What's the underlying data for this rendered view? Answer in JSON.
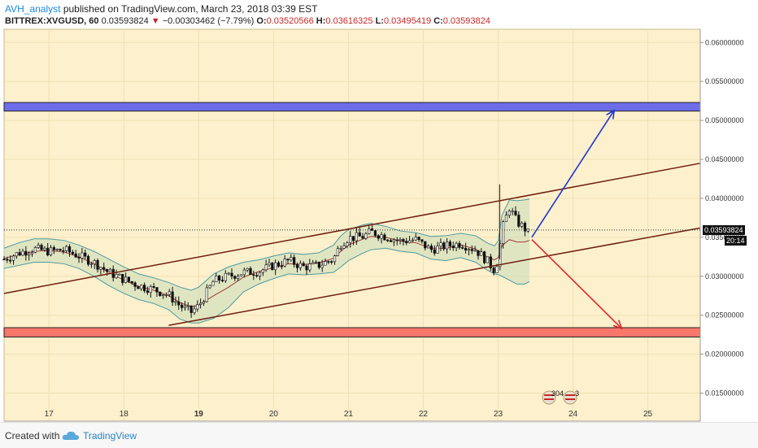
{
  "header": {
    "author": "AVH_analyst",
    "published": "published on TradingView.com, March 23, 2018 03:39 EST"
  },
  "ohlc": {
    "symbol": "BITTREX:XVGUSD, 60",
    "last": "0.03593824",
    "change_arrow": "▼",
    "change": "−0.00303462 (−7.79%)",
    "open_key": "O:",
    "open": "0.03520566",
    "high_key": "H:",
    "high": "0.03616325",
    "low_key": "L:",
    "low": "0.03495419",
    "close_key": "C:",
    "close": "0.03593824"
  },
  "price_tags": {
    "current": "0.03593824",
    "countdown": "20:14"
  },
  "events": {
    "count_a": "304",
    "count_b": "3"
  },
  "footer": {
    "created_with": "Created with",
    "brand": "TradingView"
  },
  "colors": {
    "background": "#fdf0cc",
    "resistance_zone": "#6d6dea",
    "support_zone": "#f7776a",
    "channel": "#6d1f0f",
    "up_arrow": "#1d35d8",
    "down_arrow": "#e2272a",
    "bb_band": "#4d9aa0",
    "bb_fill": "#c9dcb8",
    "bb_mid": "#9a3d3a"
  },
  "chart_data": {
    "type": "candlestick",
    "title": "BITTREX:XVGUSD, 60",
    "x_tick_labels": [
      "17",
      "18",
      "19",
      "20",
      "21",
      "22",
      "23",
      "24",
      "25"
    ],
    "x_ticks": [
      17,
      18,
      19,
      20,
      21,
      22,
      23,
      24,
      25
    ],
    "x_range": [
      16.4,
      25.7
    ],
    "y_tick_labels": [
      "0.06000000",
      "0.05500000",
      "0.05000000",
      "0.04500000",
      "0.04000000",
      "0.03500000",
      "0.03000000",
      "0.02500000",
      "0.02000000",
      "0.01500000"
    ],
    "y_ticks": [
      0.06,
      0.055,
      0.05,
      0.045,
      0.04,
      0.035,
      0.03,
      0.025,
      0.02,
      0.015
    ],
    "y_range": [
      0.0114,
      0.0617
    ],
    "current_price": 0.03593824,
    "zones": [
      {
        "name": "resistance",
        "from": 0.0512,
        "to": 0.0523
      },
      {
        "name": "support",
        "from": 0.0222,
        "to": 0.0234
      }
    ],
    "channel_lines": [
      {
        "x1": 16.4,
        "y1": 0.0278,
        "x2": 25.7,
        "y2": 0.0445
      },
      {
        "x1": 18.6,
        "y1": 0.0237,
        "x2": 25.7,
        "y2": 0.0362
      }
    ],
    "arrows": [
      {
        "name": "bullish-projection",
        "x1": 23.45,
        "y1": 0.035,
        "x2": 24.55,
        "y2": 0.0513
      },
      {
        "name": "bearish-projection",
        "x1": 23.45,
        "y1": 0.0347,
        "x2": 24.65,
        "y2": 0.0233
      }
    ],
    "price_path": {
      "x": [
        16.4,
        16.6,
        16.8,
        17.0,
        17.2,
        17.4,
        17.6,
        17.8,
        18.0,
        18.2,
        18.4,
        18.6,
        18.75,
        18.9,
        19.0,
        19.2,
        19.4,
        19.6,
        19.8,
        20.0,
        20.2,
        20.4,
        20.6,
        20.8,
        20.9,
        21.0,
        21.2,
        21.3,
        21.5,
        21.7,
        21.9,
        22.1,
        22.3,
        22.5,
        22.7,
        22.85,
        22.95,
        23.0,
        23.05,
        23.15,
        23.25,
        23.35,
        23.42
      ],
      "y": [
        0.0322,
        0.033,
        0.0335,
        0.0332,
        0.0334,
        0.0326,
        0.0318,
        0.0305,
        0.0296,
        0.0288,
        0.0283,
        0.0276,
        0.0262,
        0.0254,
        0.0262,
        0.0294,
        0.03,
        0.0305,
        0.0306,
        0.0314,
        0.032,
        0.0312,
        0.0314,
        0.0322,
        0.0342,
        0.0349,
        0.0351,
        0.0357,
        0.0351,
        0.0345,
        0.0347,
        0.0334,
        0.0339,
        0.0342,
        0.0334,
        0.032,
        0.0308,
        0.0322,
        0.036,
        0.0388,
        0.037,
        0.0362,
        0.0353
      ]
    },
    "bollinger": {
      "upper": [
        0.0336,
        0.0343,
        0.0348,
        0.0348,
        0.0346,
        0.034,
        0.0332,
        0.0322,
        0.0312,
        0.0303,
        0.0298,
        0.0292,
        0.0286,
        0.0282,
        0.0286,
        0.0303,
        0.0312,
        0.0318,
        0.0321,
        0.0326,
        0.033,
        0.0328,
        0.033,
        0.034,
        0.0352,
        0.036,
        0.0366,
        0.0368,
        0.0364,
        0.0358,
        0.0356,
        0.0351,
        0.0352,
        0.0355,
        0.0352,
        0.0343,
        0.0339,
        0.0345,
        0.0378,
        0.0398,
        0.0397,
        0.0398,
        0.0399
      ],
      "lower": [
        0.031,
        0.0314,
        0.0318,
        0.0318,
        0.0316,
        0.031,
        0.03,
        0.0288,
        0.0278,
        0.027,
        0.0265,
        0.0257,
        0.0245,
        0.024,
        0.024,
        0.0246,
        0.026,
        0.028,
        0.029,
        0.0297,
        0.0303,
        0.0302,
        0.0303,
        0.0305,
        0.0312,
        0.032,
        0.033,
        0.0334,
        0.0336,
        0.0332,
        0.033,
        0.0322,
        0.032,
        0.0324,
        0.0318,
        0.0308,
        0.0303,
        0.0302,
        0.03,
        0.0295,
        0.029,
        0.029,
        0.0293
      ],
      "middle": [
        0.0323,
        0.0328,
        0.0332,
        0.0333,
        0.0331,
        0.0325,
        0.0316,
        0.0305,
        0.0295,
        0.0287,
        0.0282,
        0.0275,
        0.0266,
        0.0261,
        0.0263,
        0.0275,
        0.0286,
        0.0299,
        0.0306,
        0.0311,
        0.0316,
        0.0315,
        0.0317,
        0.0323,
        0.0332,
        0.034,
        0.0348,
        0.0351,
        0.035,
        0.0345,
        0.0343,
        0.0336,
        0.0336,
        0.034,
        0.0335,
        0.0325,
        0.0321,
        0.0324,
        0.0339,
        0.0347,
        0.0344,
        0.0344,
        0.0346
      ]
    }
  }
}
